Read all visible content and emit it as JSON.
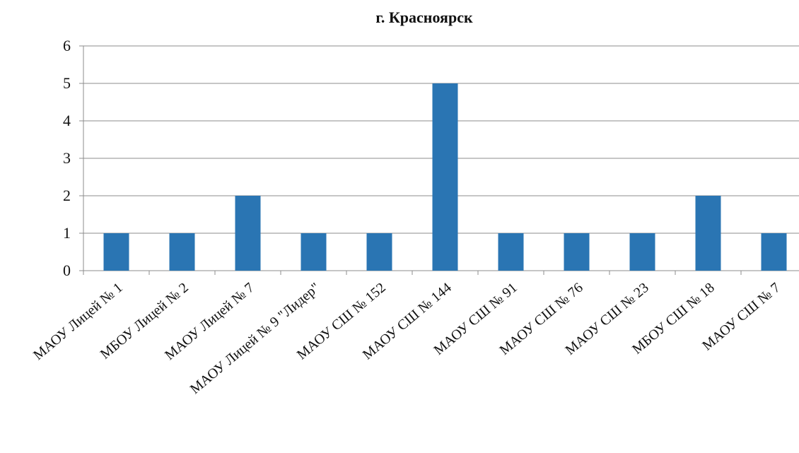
{
  "chart_data": {
    "type": "bar",
    "title": "г. Красноярск",
    "xlabel": "",
    "ylabel": "",
    "ylim": [
      0,
      6
    ],
    "yticks": [
      0,
      1,
      2,
      3,
      4,
      5,
      6
    ],
    "grid": true,
    "legend": "none",
    "bar_color": "#2a75b3",
    "categories": [
      "МАОУ Лицей № 1",
      "МБОУ Лицей № 2",
      "МАОУ Лицей № 7",
      "МАОУ Лицей № 9 \"Лидер\"",
      "МАОУ СШ № 152",
      "МАОУ СШ № 144",
      "МАОУ СШ № 91",
      "МАОУ СШ № 76",
      "МАОУ  СШ № 23",
      "МБОУ СШ № 18",
      "МАОУ СШ № 7"
    ],
    "values": [
      1,
      1,
      2,
      1,
      1,
      5,
      1,
      1,
      1,
      2,
      1
    ]
  }
}
